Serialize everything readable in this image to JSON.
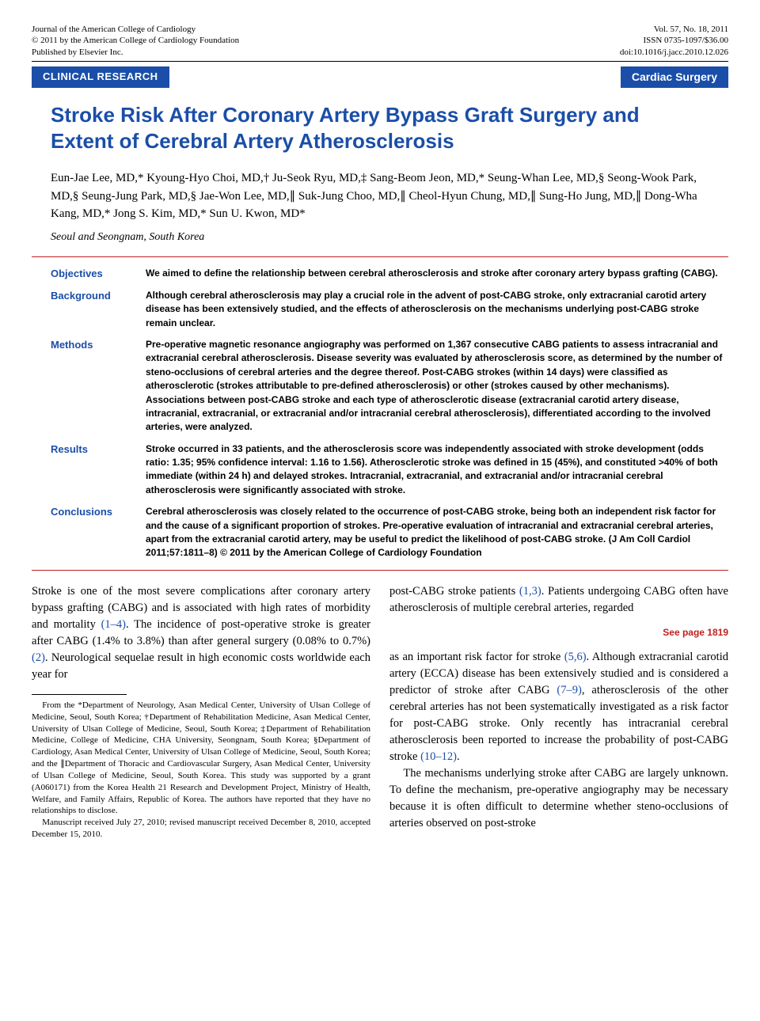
{
  "header": {
    "left": [
      "Journal of the American College of Cardiology",
      "© 2011 by the American College of Cardiology Foundation",
      "Published by Elsevier Inc."
    ],
    "right": [
      "Vol. 57, No. 18, 2011",
      "ISSN 0735-1097/$36.00",
      "doi:10.1016/j.jacc.2010.12.026"
    ]
  },
  "banner": {
    "left": "CLINICAL RESEARCH",
    "right": "Cardiac Surgery"
  },
  "title": "Stroke Risk After Coronary Artery Bypass Graft Surgery and Extent of Cerebral Artery Atherosclerosis",
  "authors": "Eun-Jae Lee, MD,* Kyoung-Hyo Choi, MD,† Ju-Seok Ryu, MD,‡ Sang-Beom Jeon, MD,* Seung-Whan Lee, MD,§ Seong-Wook Park, MD,§ Seung-Jung Park, MD,§ Jae-Won Lee, MD,∥ Suk-Jung Choo, MD,∥ Cheol-Hyun Chung, MD,∥ Sung-Ho Jung, MD,∥ Dong-Wha Kang, MD,* Jong S. Kim, MD,* Sun U. Kwon, MD*",
  "affiliation": "Seoul and Seongnam, South Korea",
  "abstract": {
    "rows": [
      {
        "label": "Objectives",
        "text": "We aimed to define the relationship between cerebral atherosclerosis and stroke after coronary artery bypass grafting (CABG)."
      },
      {
        "label": "Background",
        "text": "Although cerebral atherosclerosis may play a crucial role in the advent of post-CABG stroke, only extracranial carotid artery disease has been extensively studied, and the effects of atherosclerosis on the mechanisms underlying post-CABG stroke remain unclear."
      },
      {
        "label": "Methods",
        "text": "Pre-operative magnetic resonance angiography was performed on 1,367 consecutive CABG patients to assess intracranial and extracranial cerebral atherosclerosis. Disease severity was evaluated by atherosclerosis score, as determined by the number of steno-occlusions of cerebral arteries and the degree thereof. Post-CABG strokes (within 14 days) were classified as atherosclerotic (strokes attributable to pre-defined atherosclerosis) or other (strokes caused by other mechanisms). Associations between post-CABG stroke and each type of atherosclerotic disease (extracranial carotid artery disease, intracranial, extracranial, or extracranial and/or intracranial cerebral atherosclerosis), differentiated according to the involved arteries, were analyzed."
      },
      {
        "label": "Results",
        "text": "Stroke occurred in 33 patients, and the atherosclerosis score was independently associated with stroke development (odds ratio: 1.35; 95% confidence interval: 1.16 to 1.56). Atherosclerotic stroke was defined in 15 (45%), and constituted >40% of both immediate (within 24 h) and delayed strokes. Intracranial, extracranial, and extracranial and/or intracranial cerebral atherosclerosis were significantly associated with stroke."
      },
      {
        "label": "Conclusions",
        "text": "Cerebral atherosclerosis was closely related to the occurrence of post-CABG stroke, being both an independent risk factor for and the cause of a significant proportion of strokes. Pre-operative evaluation of intracranial and extracranial cerebral arteries, apart from the extracranial carotid artery, may be useful to predict the likelihood of post-CABG stroke.   (J Am Coll Cardiol 2011;57:1811–8) © 2011 by the American College of Cardiology Foundation"
      }
    ]
  },
  "body": {
    "left": {
      "p1a": "Stroke is one of the most severe complications after coronary artery bypass grafting (CABG) and is associated with high rates of morbidity and mortality ",
      "ref1": "(1–4)",
      "p1b": ". The incidence of post-operative stroke is greater after CABG (1.4% to 3.8%) than after general surgery (0.08% to 0.7%) ",
      "ref2": "(2)",
      "p1c": ". Neurological sequelae result in high economic costs worldwide each year for"
    },
    "left_footnotes": {
      "f1": "From the *Department of Neurology, Asan Medical Center, University of Ulsan College of Medicine, Seoul, South Korea; †Department of Rehabilitation Medicine, Asan Medical Center, University of Ulsan College of Medicine, Seoul, South Korea; ‡Department of Rehabilitation Medicine, College of Medicine, CHA University, Seongnam, South Korea; §Department of Cardiology, Asan Medical Center, University of Ulsan College of Medicine, Seoul, South Korea; and the ∥Department of Thoracic and Cardiovascular Surgery, Asan Medical Center, University of Ulsan College of Medicine, Seoul, South Korea. This study was supported by a grant (A060171) from the Korea Health 21 Research and Development Project, Ministry of Health, Welfare, and Family Affairs, Republic of Korea. The authors have reported that they have no relationships to disclose.",
      "f2": "Manuscript received July 27, 2010; revised manuscript received December 8, 2010, accepted December 15, 2010."
    },
    "right": {
      "p1a": "post-CABG stroke patients ",
      "ref3": "(1,3)",
      "p1b": ". Patients undergoing CABG often have atherosclerosis of multiple cerebral arteries, regarded",
      "see_page": "See page 1819",
      "p2a": "as an important risk factor for stroke ",
      "ref4": "(5,6)",
      "p2b": ". Although extracranial carotid artery (ECCA) disease has been extensively studied and is considered a predictor of stroke after CABG ",
      "ref5": "(7–9)",
      "p2c": ", atherosclerosis of the other cerebral arteries has not been systematically investigated as a risk factor for post-CABG stroke. Only recently has intracranial cerebral atherosclerosis been reported to increase the probability of post-CABG stroke ",
      "ref6": "(10–12)",
      "p2d": ".",
      "p3": "The mechanisms underlying stroke after CABG are largely unknown. To define the mechanism, pre-operative angiography may be necessary because it is often difficult to determine whether steno-occlusions of arteries observed on post-stroke"
    }
  }
}
